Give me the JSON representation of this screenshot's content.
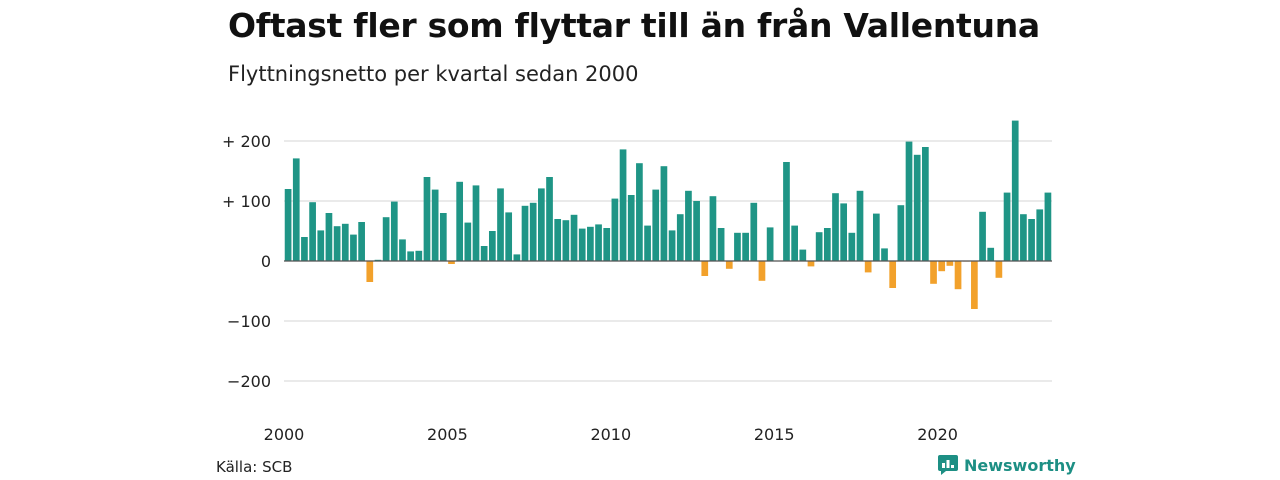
{
  "title": "Oftast fler som flyttar till än från Vallentuna",
  "subtitle": "Flyttningsnetto per kvartal sedan 2000",
  "source": "Källa: SCB",
  "brand": "Newsworthy",
  "colors": {
    "positive": "#1f9586",
    "negative": "#f2a12b",
    "grid": "#dddddd",
    "zero": "#555555",
    "brand": "#1d8f84"
  },
  "chart_data": {
    "type": "bar",
    "title": "Oftast fler som flyttar till än från Vallentuna",
    "subtitle": "Flyttningsnetto per kvartal sedan 2000",
    "ylim": [
      -220,
      245
    ],
    "y_ticks": [
      200,
      100,
      0,
      -100,
      -200
    ],
    "y_tick_labels": [
      "+ 200",
      "+ 100",
      "0",
      "−100",
      "−200"
    ],
    "x_tick_labels": [
      "2000",
      "2005",
      "2010",
      "2015",
      "2020"
    ],
    "start_year": 2000,
    "grid": true,
    "values": [
      120,
      171,
      40,
      98,
      51,
      80,
      58,
      62,
      44,
      65,
      -35,
      2,
      73,
      99,
      36,
      16,
      17,
      140,
      119,
      80,
      -5,
      132,
      64,
      126,
      25,
      50,
      121,
      81,
      11,
      92,
      97,
      121,
      140,
      70,
      68,
      77,
      54,
      57,
      61,
      55,
      104,
      186,
      110,
      163,
      59,
      119,
      158,
      51,
      78,
      117,
      100,
      -25,
      108,
      55,
      -13,
      47,
      47,
      97,
      -33,
      56,
      0,
      165,
      59,
      19,
      -9,
      48,
      55,
      113,
      96,
      47,
      117,
      -19,
      79,
      21,
      -45,
      93,
      199,
      177,
      190,
      -38,
      -17,
      -8,
      -47,
      -1,
      -80,
      82,
      22,
      -28,
      114,
      234,
      78,
      70,
      86,
      114
    ]
  }
}
